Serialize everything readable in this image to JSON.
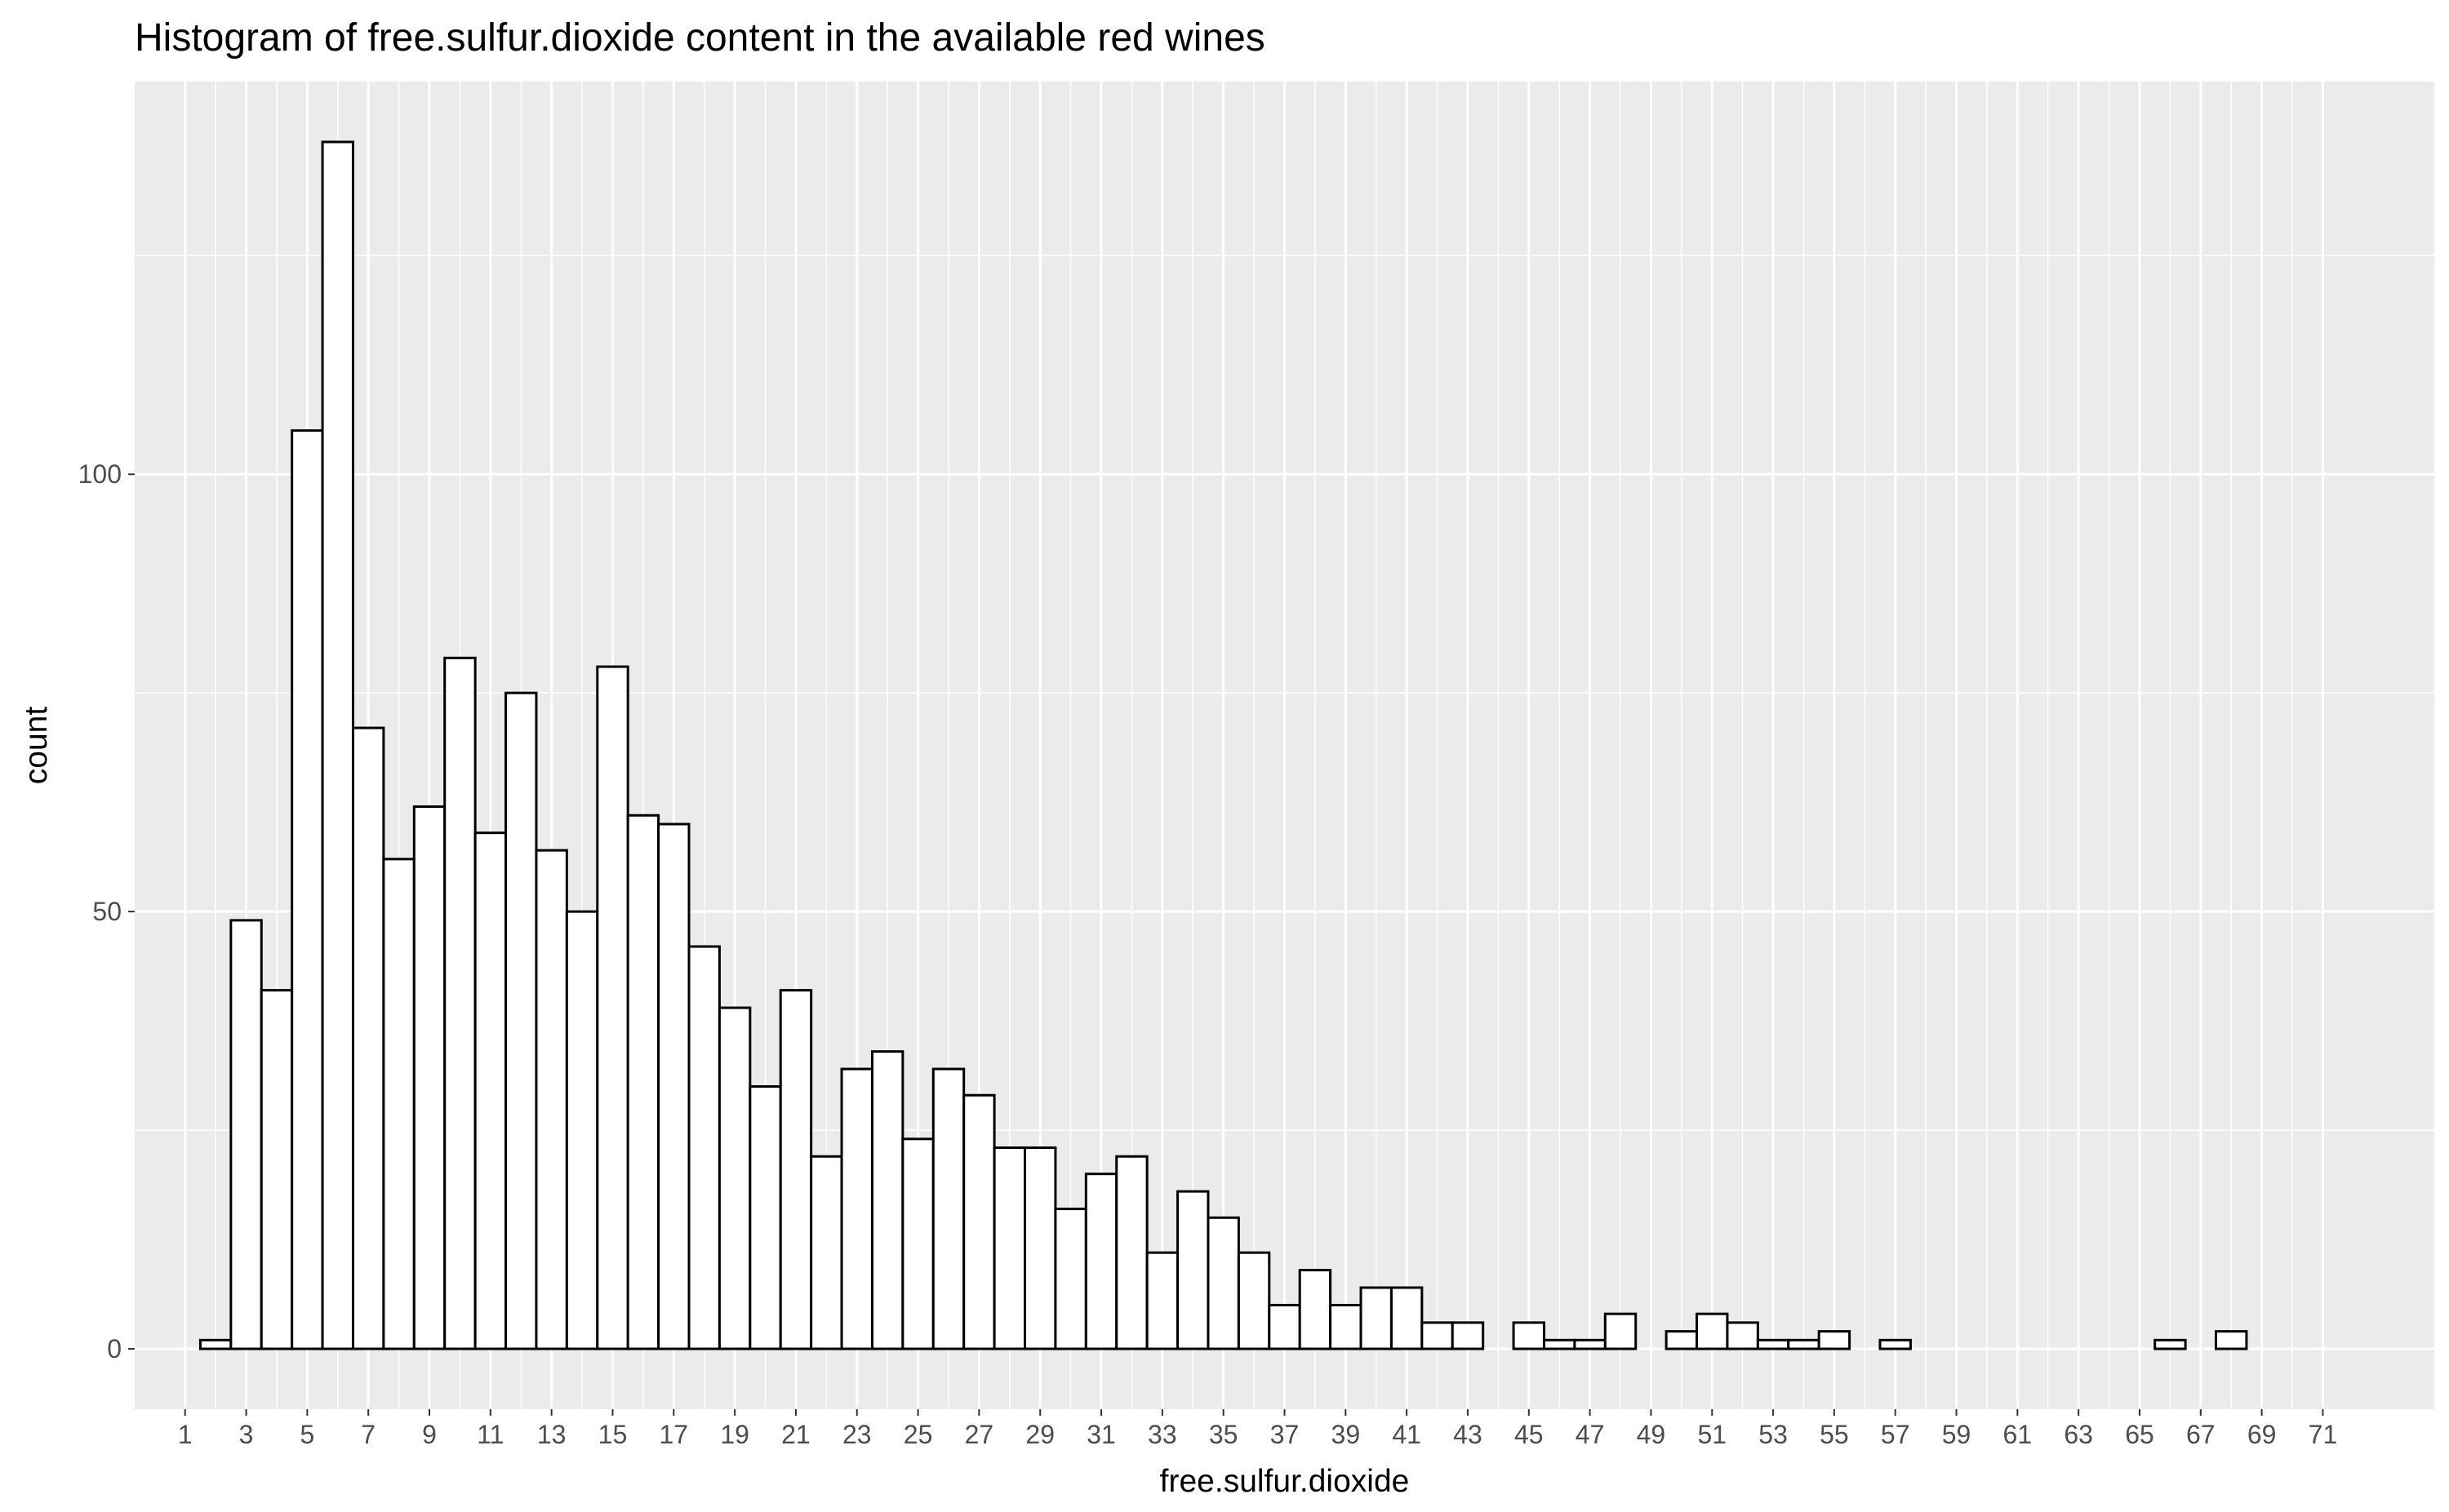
{
  "chart_data": {
    "type": "bar",
    "title": "Histogram of free.sulfur.dioxide content in the available red wines",
    "xlabel": "free.sulfur.dioxide",
    "ylabel": "count",
    "x": [
      2,
      3,
      4,
      5,
      6,
      7,
      8,
      9,
      10,
      11,
      12,
      13,
      14,
      15,
      16,
      17,
      18,
      19,
      20,
      21,
      22,
      23,
      24,
      25,
      26,
      27,
      28,
      29,
      30,
      31,
      32,
      33,
      34,
      35,
      36,
      37,
      38,
      39,
      40,
      41,
      42,
      43,
      44,
      45,
      46,
      47,
      48,
      49,
      50,
      51,
      52,
      53,
      54,
      55,
      56,
      57,
      58,
      59,
      60,
      61,
      62,
      63,
      64,
      65,
      66,
      67,
      68,
      69,
      70,
      71,
      72
    ],
    "values": [
      1,
      49,
      41,
      105,
      138,
      71,
      56,
      62,
      79,
      59,
      75,
      57,
      50,
      78,
      61,
      60,
      46,
      39,
      30,
      41,
      22,
      32,
      34,
      24,
      32,
      29,
      23,
      23,
      16,
      20,
      22,
      11,
      18,
      15,
      11,
      5,
      9,
      5,
      7,
      7,
      3,
      3,
      0,
      3,
      1,
      1,
      4,
      0,
      2,
      4,
      3,
      1,
      1,
      2,
      0,
      1,
      0,
      0,
      0,
      0,
      0,
      0,
      0,
      0,
      1,
      0,
      2,
      0,
      0,
      0,
      0
    ],
    "xticks": [
      "1",
      "3",
      "5",
      "7",
      "9",
      "11",
      "13",
      "15",
      "17",
      "19",
      "21",
      "23",
      "25",
      "27",
      "29",
      "31",
      "33",
      "35",
      "37",
      "39",
      "41",
      "43",
      "45",
      "47",
      "49",
      "51",
      "53",
      "55",
      "57",
      "59",
      "61",
      "63",
      "65",
      "67",
      "69",
      "71"
    ],
    "yticks": [
      "0",
      "50",
      "100"
    ],
    "xlim": [
      -0.65,
      74.65
    ],
    "ylim": [
      -6.9,
      144.9
    ],
    "panel_background": "#ebebeb",
    "grid": true,
    "grid_color": "#ffffff",
    "bar_fill": "#ffffff",
    "bar_outline": "#000000",
    "legend": "none"
  }
}
